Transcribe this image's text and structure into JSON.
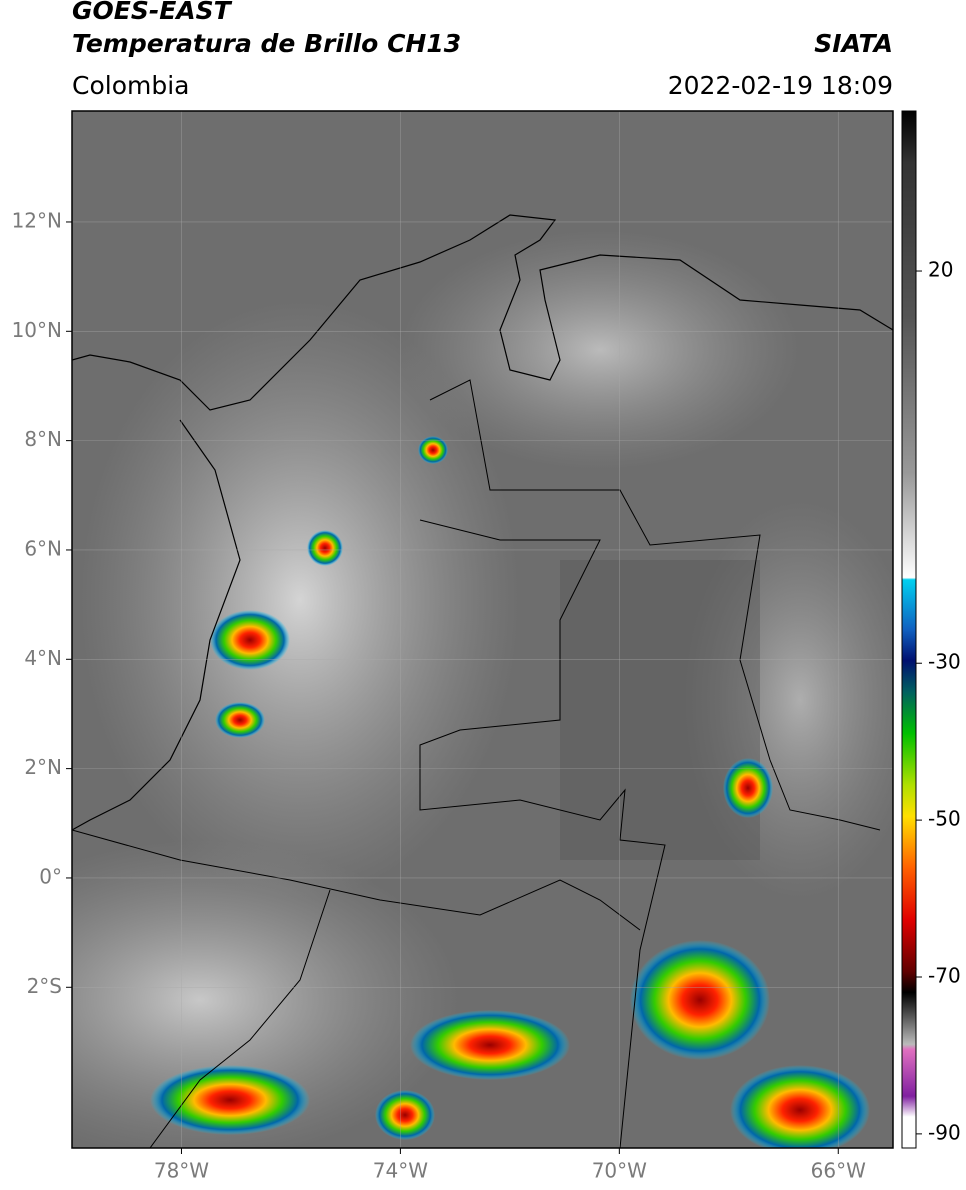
{
  "header": {
    "title": "GOES-EAST",
    "subtitle": "Temperatura de Brillo CH13",
    "region": "Colombia",
    "source": "SIATA",
    "datetime": "2022-02-19 18:09"
  },
  "map": {
    "xlim": [
      -80,
      -65
    ],
    "ylim": [
      -4.94,
      14.03
    ],
    "xticks": [
      {
        "value": -78,
        "label": "78°W"
      },
      {
        "value": -74,
        "label": "74°W"
      },
      {
        "value": -70,
        "label": "70°W"
      },
      {
        "value": -66,
        "label": "66°W"
      }
    ],
    "yticks": [
      {
        "value": 12,
        "label": "12°N"
      },
      {
        "value": 10,
        "label": "10°N"
      },
      {
        "value": 8,
        "label": "8°N"
      },
      {
        "value": 6,
        "label": "6°N"
      },
      {
        "value": 4,
        "label": "4°N"
      },
      {
        "value": 2,
        "label": "2°N"
      },
      {
        "value": 0,
        "label": "0°"
      },
      {
        "value": -2,
        "label": "2°S"
      }
    ],
    "grid": true
  },
  "colorbar": {
    "lim": [
      -91.8,
      40.4
    ],
    "ticks": [
      20,
      -30,
      -50,
      -70,
      -90
    ]
  }
}
